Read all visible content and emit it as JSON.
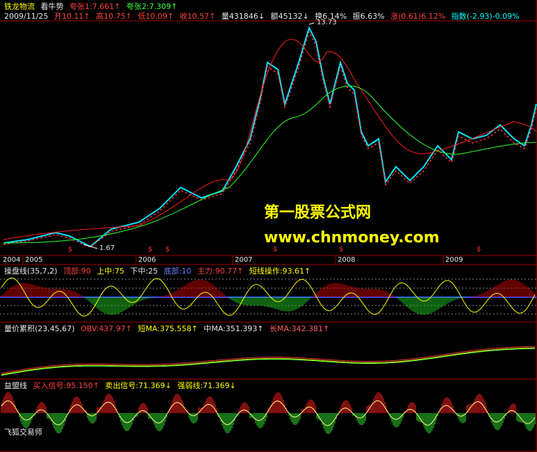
{
  "header": {
    "name": "铁龙物流",
    "pattern": "看牛势",
    "ratio1": "夸张1:7.661↑",
    "ratio2": "夸张2:7.309↑"
  },
  "quote": {
    "date": "2009/11/25",
    "open": "开10.11↑",
    "high": "高10.75↑",
    "low": "低10.09↑",
    "close": "收10.57↑",
    "volume": "量431846↓",
    "amount": "额45132↓",
    "turnover": "换6.14%",
    "amplitude": "振6.63%",
    "change": "涨(0.61)6.12%",
    "index": "指数(-2.93)-0.09%"
  },
  "main_chart": {
    "high_label": "13.73",
    "low_label": "1.67",
    "signals": [
      "$",
      "$",
      "$",
      "$",
      "$",
      "$"
    ],
    "watermark": [
      "第一股票公式网",
      "www.chnmoney.com"
    ]
  },
  "time_axis": [
    "2004",
    "2005",
    "2006",
    "2007",
    "2008",
    "2009"
  ],
  "panels": [
    {
      "title": "操盘线(35,7,2)",
      "items": [
        "顶部:90",
        "上中:75",
        "下中:25",
        "底部:10",
        "主力:90.77↑",
        "短线操作:93.61↑"
      ]
    },
    {
      "title": "量价累积(23,45,67)",
      "items": [
        "OBV:437.97↑",
        "短MA:375.558↑",
        "中MA:351.393↑",
        "长MA:342.381↑"
      ]
    },
    {
      "title": "益盟线",
      "items": [
        "买入信号:95.150↑",
        "卖出信号:71.369↓",
        "强弱线:71.369↓"
      ]
    }
  ],
  "footer": "飞狐交易师"
}
